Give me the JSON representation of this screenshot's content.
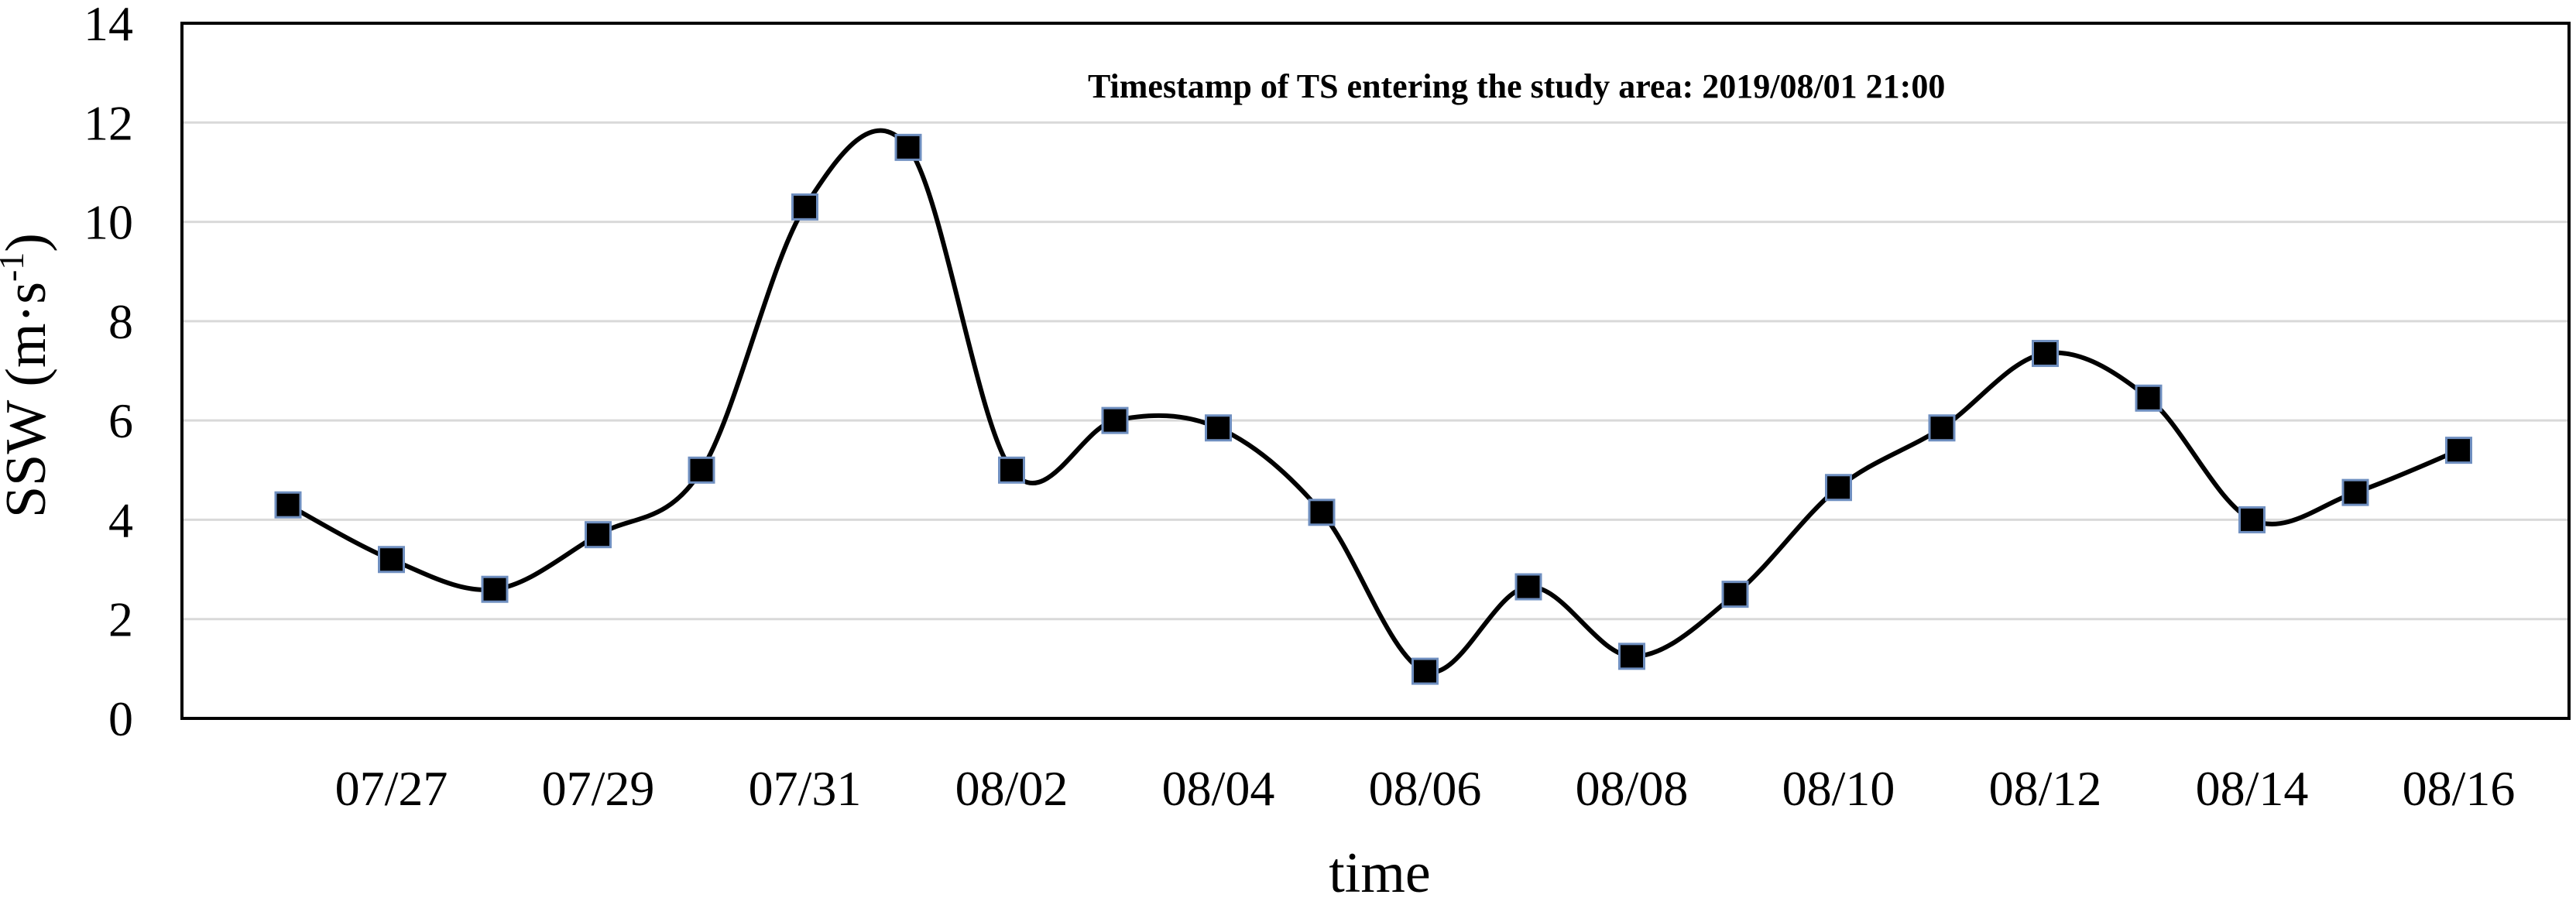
{
  "chart_data": {
    "type": "line",
    "title": "",
    "xlabel": "time",
    "ylabel_main": "SSW (m·s",
    "ylabel_sup": "-1",
    "ylabel_close": ")",
    "annotation": "Timestamp of TS entering the study area: 2019/08/01 21:00",
    "ylim": [
      0,
      14
    ],
    "yticks": [
      0,
      2,
      4,
      6,
      8,
      10,
      12,
      14
    ],
    "ytick_labels": [
      "0",
      "2",
      "4",
      "6",
      "8",
      "10",
      "12",
      "14"
    ],
    "xtick_labels": [
      "07/27",
      "07/29",
      "07/31",
      "08/02",
      "08/04",
      "08/06",
      "08/08",
      "08/10",
      "08/12",
      "08/14",
      "08/16"
    ],
    "x": [
      "07/26",
      "07/27",
      "07/28",
      "07/29",
      "07/30",
      "07/31",
      "08/01",
      "08/02",
      "08/03",
      "08/04",
      "08/05",
      "08/06",
      "08/07",
      "08/08",
      "08/09",
      "08/10",
      "08/11",
      "08/12",
      "08/13",
      "08/14",
      "08/15",
      "08/16"
    ],
    "series": [
      {
        "values": [
          4.3,
          3.2,
          2.6,
          3.7,
          5.0,
          10.3,
          11.5,
          5.0,
          6.0,
          5.85,
          4.15,
          0.95,
          2.65,
          1.25,
          2.5,
          4.65,
          5.85,
          7.35,
          6.45,
          4.0,
          4.55,
          5.4
        ]
      }
    ],
    "grid": true,
    "marker": "square",
    "colors": {
      "line": "#000000",
      "marker_fill": "#000000",
      "marker_edge": "#6f8fc0",
      "grid": "#d9d9d9",
      "frame": "#000000"
    }
  }
}
